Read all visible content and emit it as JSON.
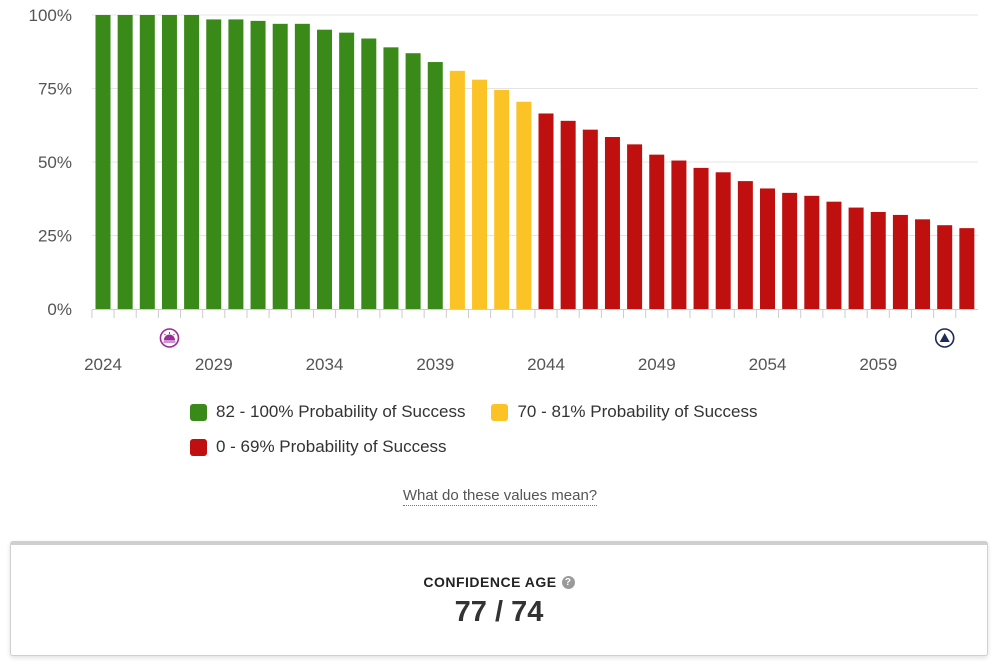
{
  "chart_data": {
    "type": "bar",
    "x": [
      2024,
      2025,
      2026,
      2027,
      2028,
      2029,
      2030,
      2031,
      2032,
      2033,
      2034,
      2035,
      2036,
      2037,
      2038,
      2039,
      2040,
      2041,
      2042,
      2043,
      2044,
      2045,
      2046,
      2047,
      2048,
      2049,
      2050,
      2051,
      2052,
      2053,
      2054,
      2055,
      2056,
      2057,
      2058,
      2059,
      2060,
      2061,
      2062,
      2063
    ],
    "values": [
      100,
      100,
      100,
      100,
      100,
      98.5,
      98.5,
      98,
      97,
      97,
      95,
      94,
      92,
      89,
      87,
      84,
      81,
      78,
      74.5,
      70.5,
      66.5,
      64,
      61,
      58.5,
      56,
      52.5,
      50.5,
      48,
      46.5,
      43.5,
      41,
      39.5,
      38.5,
      36.5,
      34.5,
      33,
      32,
      30.5,
      28.5,
      27.5
    ],
    "x_tick_labels": [
      "2024",
      "2029",
      "2034",
      "2039",
      "2044",
      "2049",
      "2054",
      "2059"
    ],
    "y_tick_labels": [
      "0%",
      "25%",
      "50%",
      "75%",
      "100%"
    ],
    "ylim": [
      0,
      100
    ],
    "grid": true,
    "legend_position": "bottom",
    "color_bands": [
      {
        "label": "82 - 100% Probability of Success",
        "color": "#3a8a19",
        "min": 82,
        "max": 100
      },
      {
        "label": "70 - 81% Probability of Success",
        "color": "#fbc325",
        "min": 70,
        "max": 81.99
      },
      {
        "label": "0 - 69% Probability of Success",
        "color": "#bf0f0f",
        "min": 0,
        "max": 69.99
      }
    ],
    "markers": [
      {
        "name": "sunset-marker-icon",
        "year": 2027,
        "color": "#9b2a9b"
      },
      {
        "name": "triangle-marker-icon",
        "year": 2062,
        "color": "#1d2a5c"
      }
    ]
  },
  "help_link": "What do these values mean?",
  "confidence": {
    "label": "CONFIDENCE AGE",
    "value": "77 / 74",
    "help_icon": "question-circle-icon"
  }
}
